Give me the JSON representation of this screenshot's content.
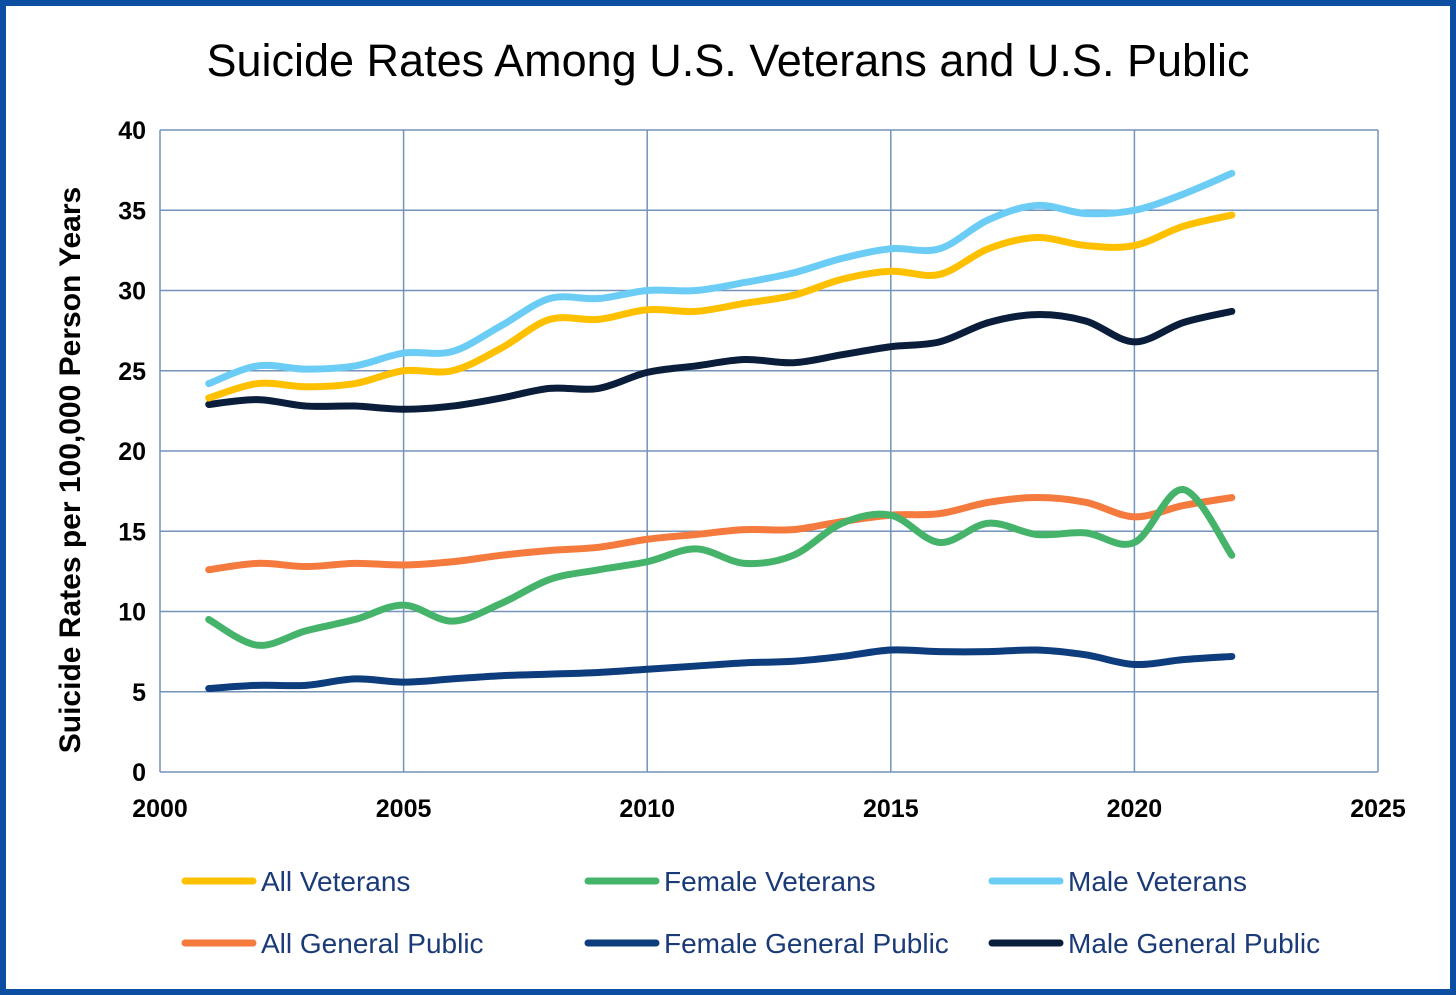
{
  "chart_data": {
    "type": "line",
    "title": "Suicide Rates Among U.S. Veterans and U.S. Public",
    "xlabel": "",
    "ylabel": "Suicide Rates per 100,000 Person Years",
    "xlim": [
      2000,
      2025
    ],
    "ylim": [
      0,
      40
    ],
    "xticks": [
      2000,
      2005,
      2010,
      2015,
      2020,
      2025
    ],
    "yticks": [
      0,
      5,
      10,
      15,
      20,
      25,
      30,
      35,
      40
    ],
    "grid": true,
    "legend_position": "bottom",
    "x": [
      2001,
      2002,
      2003,
      2004,
      2005,
      2006,
      2007,
      2008,
      2009,
      2010,
      2011,
      2012,
      2013,
      2014,
      2015,
      2016,
      2017,
      2018,
      2019,
      2020,
      2021,
      2022
    ],
    "series": [
      {
        "name": "All Veterans",
        "color": "#FFC000",
        "values": [
          23.3,
          24.2,
          24.0,
          24.2,
          25.0,
          25.0,
          26.4,
          28.2,
          28.2,
          28.8,
          28.7,
          29.2,
          29.7,
          30.7,
          31.2,
          31.0,
          32.6,
          33.3,
          32.8,
          32.8,
          34.0,
          34.7
        ]
      },
      {
        "name": "Female Veterans",
        "color": "#45B46A",
        "values": [
          9.5,
          7.9,
          8.8,
          9.5,
          10.4,
          9.4,
          10.5,
          12.0,
          12.6,
          13.1,
          13.9,
          13.0,
          13.5,
          15.5,
          16.0,
          14.3,
          15.5,
          14.8,
          14.9,
          14.3,
          17.6,
          13.5
        ]
      },
      {
        "name": "Male Veterans",
        "color": "#6BCDF5",
        "values": [
          24.2,
          25.3,
          25.1,
          25.3,
          26.1,
          26.2,
          27.8,
          29.5,
          29.5,
          30.0,
          30.0,
          30.5,
          31.1,
          32.0,
          32.6,
          32.6,
          34.4,
          35.3,
          34.8,
          35.0,
          36.0,
          37.3
        ]
      },
      {
        "name": "All General Public",
        "color": "#F47A3E",
        "values": [
          12.6,
          13.0,
          12.8,
          13.0,
          12.9,
          13.1,
          13.5,
          13.8,
          14.0,
          14.5,
          14.8,
          15.1,
          15.1,
          15.6,
          16.0,
          16.1,
          16.8,
          17.1,
          16.8,
          15.9,
          16.6,
          17.1
        ]
      },
      {
        "name": "Female General Public",
        "color": "#0E3D7E",
        "values": [
          5.2,
          5.4,
          5.4,
          5.8,
          5.6,
          5.8,
          6.0,
          6.1,
          6.2,
          6.4,
          6.6,
          6.8,
          6.9,
          7.2,
          7.6,
          7.5,
          7.5,
          7.6,
          7.3,
          6.7,
          7.0,
          7.2
        ]
      },
      {
        "name": "Male General Public",
        "color": "#0A1E3C",
        "values": [
          22.9,
          23.2,
          22.8,
          22.8,
          22.6,
          22.8,
          23.3,
          23.9,
          23.9,
          24.9,
          25.3,
          25.7,
          25.5,
          26.0,
          26.5,
          26.8,
          28.0,
          28.5,
          28.1,
          26.8,
          28.0,
          28.7
        ]
      }
    ]
  }
}
